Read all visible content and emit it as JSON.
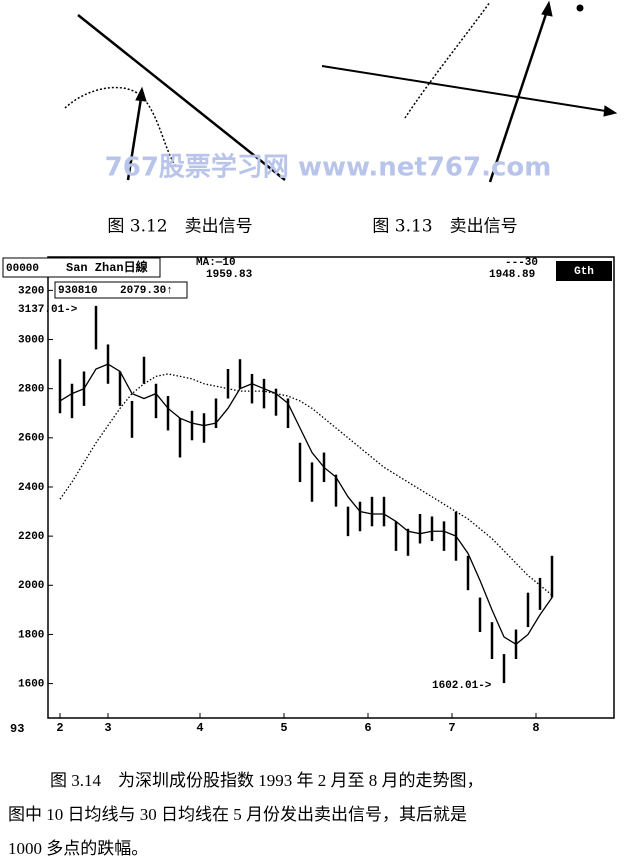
{
  "figures_top": {
    "watermark": "767股票学习网 www.net767.com",
    "captions": [
      "图 3.12　卖出信号",
      "图 3.13　卖出信号"
    ]
  },
  "chart_data": {
    "type": "hl",
    "header": {
      "code": "00000",
      "name": "San Zhan日線",
      "date": "930810",
      "last": "2079.30↑",
      "ma10_label": "MA:—10",
      "ma10_value": "1959.83",
      "ma30_label": "---30",
      "ma30_value": "1948.89",
      "corner": "Gth"
    },
    "year_label": "93",
    "annotations": [
      "3137.01->",
      "1602.01->"
    ],
    "x": [
      0,
      3,
      6,
      9,
      12,
      15,
      18,
      21,
      24,
      27,
      30,
      33,
      36,
      39,
      42,
      45,
      48,
      51,
      54,
      57,
      60,
      63,
      66,
      69,
      72,
      75,
      78,
      81,
      84,
      87,
      90,
      93,
      96,
      99,
      102,
      105,
      108,
      111,
      114,
      117,
      120,
      123
    ],
    "high": [
      2920,
      2820,
      2870,
      3137,
      2980,
      2870,
      2750,
      2930,
      2820,
      2770,
      2680,
      2710,
      2700,
      2760,
      2880,
      2920,
      2860,
      2840,
      2800,
      2760,
      2580,
      2500,
      2540,
      2450,
      2320,
      2340,
      2360,
      2360,
      2260,
      2230,
      2290,
      2280,
      2260,
      2300,
      2120,
      1950,
      1850,
      1720,
      1820,
      1970,
      2030,
      2120
    ],
    "low": [
      2700,
      2680,
      2730,
      2960,
      2820,
      2730,
      2600,
      2820,
      2680,
      2630,
      2520,
      2590,
      2580,
      2640,
      2760,
      2800,
      2740,
      2720,
      2690,
      2640,
      2420,
      2340,
      2420,
      2320,
      2200,
      2220,
      2240,
      2240,
      2140,
      2120,
      2170,
      2180,
      2140,
      2100,
      1980,
      1810,
      1700,
      1602,
      1700,
      1830,
      1900,
      1950
    ],
    "series": [
      {
        "color": "#000",
        "style": "solid",
        "values": [
          2750,
          2780,
          2800,
          2880,
          2900,
          2870,
          2780,
          2760,
          2780,
          2720,
          2680,
          2660,
          2650,
          2660,
          2720,
          2800,
          2820,
          2800,
          2780,
          2740,
          2640,
          2540,
          2480,
          2440,
          2360,
          2300,
          2290,
          2290,
          2260,
          2220,
          2210,
          2220,
          2220,
          2200,
          2130,
          2020,
          1900,
          1790,
          1760,
          1800,
          1880,
          1950
        ]
      },
      {
        "color": "#000",
        "style": "dotted",
        "values": [
          2350,
          2420,
          2500,
          2580,
          2650,
          2720,
          2780,
          2820,
          2850,
          2860,
          2850,
          2840,
          2820,
          2810,
          2800,
          2790,
          2790,
          2790,
          2780,
          2770,
          2750,
          2720,
          2680,
          2640,
          2600,
          2560,
          2520,
          2480,
          2450,
          2420,
          2390,
          2360,
          2330,
          2300,
          2270,
          2230,
          2190,
          2140,
          2090,
          2040,
          2000,
          1960
        ]
      }
    ],
    "xlim": [
      -3,
      138
    ],
    "xticks": [
      {
        "value": 0,
        "label": "2"
      },
      {
        "value": 12,
        "label": "3"
      },
      {
        "value": 35,
        "label": "4"
      },
      {
        "value": 56,
        "label": "5"
      },
      {
        "value": 77,
        "label": "6"
      },
      {
        "value": 98,
        "label": "7"
      },
      {
        "value": 119,
        "label": "8"
      }
    ],
    "ylim": [
      1460,
      3230
    ],
    "yticks": [
      1600,
      1800,
      2000,
      2200,
      2400,
      2600,
      2800,
      3000,
      3200
    ]
  },
  "caption": {
    "lines": [
      "图 3.14　为深圳成份股指数 1993 年 2 月至 8 月的走势图，",
      "图中 10 日均线与 30 日均线在 5 月份发出卖出信号，其后就是",
      "1000 多点的跌幅。"
    ]
  }
}
